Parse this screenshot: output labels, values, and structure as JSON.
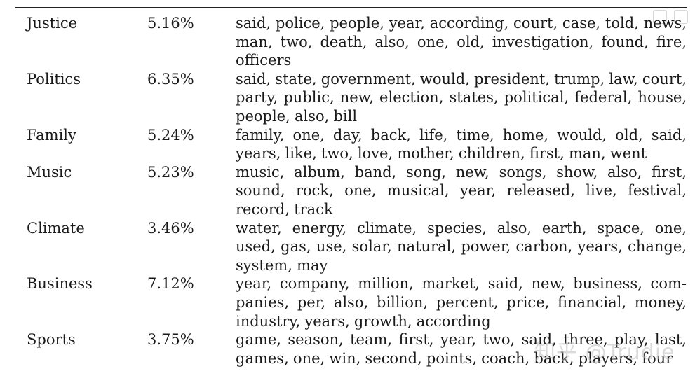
{
  "table": {
    "rows": [
      {
        "topic": "Justice",
        "share": "5.16%",
        "words": "said, police, people, year, according, court, case, told, news, man, two, death, also, one, old, investigation, found, fire, officers"
      },
      {
        "topic": "Politics",
        "share": "6.35%",
        "words": "said, state, government, would, president, trump, law, court, party, public, new, election, states, political, federal, house, people, also, bill"
      },
      {
        "topic": "Family",
        "share": "5.24%",
        "words": "family, one, day, back, life, time, home, would, old, said, years, like, two, love, mother, children, first, man, went"
      },
      {
        "topic": "Music",
        "share": "5.23%",
        "words": "music, album, band, song, new, songs, show, also, first, sound, rock, one, musical, year, released, live, festival, record, track"
      },
      {
        "topic": "Climate",
        "share": "3.46%",
        "words": "water, energy, climate, species, also, earth, space, one, used, gas, use, solar, natural, power, carbon, years, change, system, may"
      },
      {
        "topic": "Business",
        "share": "7.12%",
        "words": "year, company, million, market, said, new, business, com­panies, per, also, billion, percent, price, financial, money, industry, years, growth, according"
      },
      {
        "topic": "Sports",
        "share": "3.75%",
        "words": "game, season, team, first, year, two, said, three, play, last, games, one, win, second, points, coach, back, players, four"
      }
    ]
  },
  "watermark": {
    "text": "知乎 @Trudie"
  }
}
